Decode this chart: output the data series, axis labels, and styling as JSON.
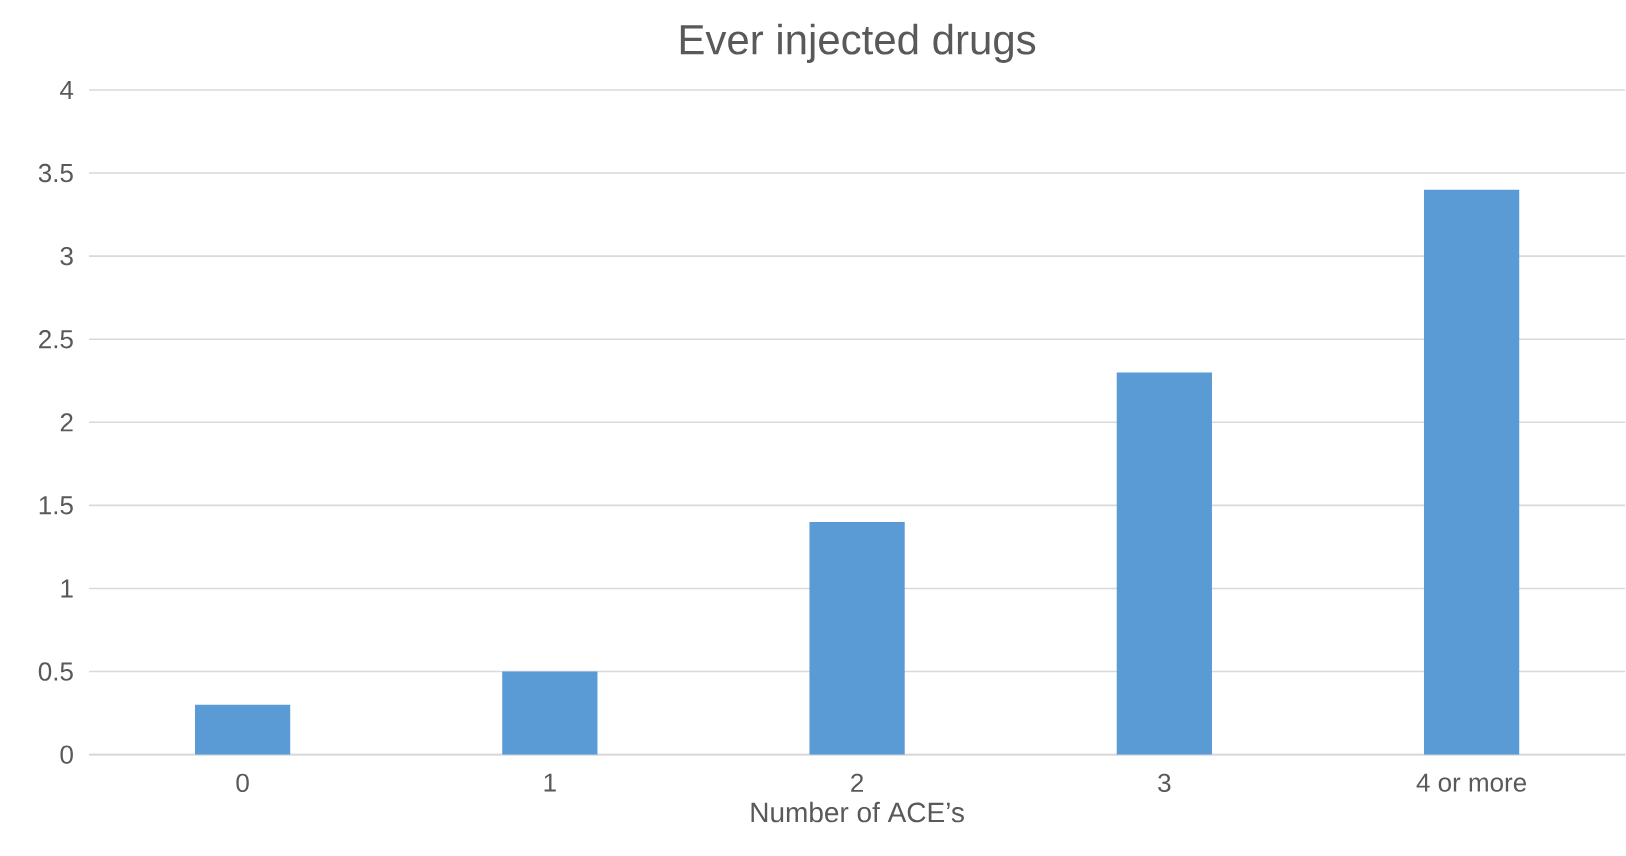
{
  "chart_data": {
    "type": "bar",
    "title": "Ever injected drugs",
    "xlabel": "Number of ACE’s",
    "categories": [
      "0",
      "1",
      "2",
      "3",
      "4 or more"
    ],
    "values": [
      0.3,
      0.5,
      1.4,
      2.3,
      3.4
    ],
    "color": "#5b9bd5",
    "ylim": [
      0,
      4
    ],
    "yticks": [
      0,
      0.5,
      1,
      1.5,
      2,
      2.5,
      3,
      3.5,
      4
    ],
    "grid": "y"
  }
}
